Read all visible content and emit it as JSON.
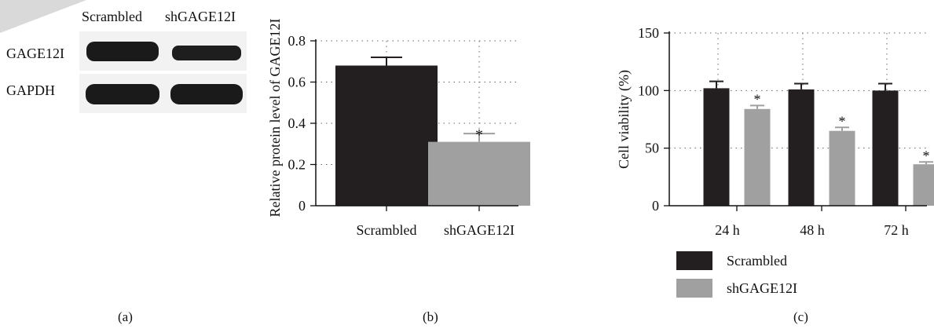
{
  "panel_a": {
    "lane_labels": [
      "Scrambled",
      "shGAGE12I"
    ],
    "row_labels": [
      "GAGE12I",
      "GAPDH"
    ],
    "tag": "(a)"
  },
  "panel_b": {
    "tag": "(b)"
  },
  "panel_c": {
    "tag": "(c)",
    "legend": [
      "Scrambled",
      "shGAGE12I"
    ]
  },
  "colors": {
    "scrambled": "#231f20",
    "shgage": "#a0a0a0",
    "blot_bg": "#f2f2f2",
    "band": "#1a1a1a"
  },
  "chart_data": [
    {
      "type": "bar",
      "categories": [
        "Scrambled",
        "shGAGE12I"
      ],
      "values": [
        0.68,
        0.31
      ],
      "errors": [
        0.04,
        0.04
      ],
      "significance": [
        "",
        "*"
      ],
      "ylabel": "Relative protein level of GAGE12I",
      "xlabel": "",
      "ylim": [
        0,
        0.8
      ],
      "yticks": [
        "0",
        "0.2",
        "0.4",
        "0.6",
        "0.8"
      ],
      "grid": "dotted"
    },
    {
      "type": "bar",
      "categories": [
        "24 h",
        "48 h",
        "72 h"
      ],
      "series": [
        {
          "name": "Scrambled",
          "values": [
            102,
            101,
            100
          ],
          "errors": [
            6,
            5,
            6
          ],
          "significance": [
            "",
            "",
            ""
          ]
        },
        {
          "name": "shGAGE12I",
          "values": [
            84,
            65,
            36
          ],
          "errors": [
            3,
            3,
            2
          ],
          "significance": [
            "*",
            "*",
            "*"
          ]
        }
      ],
      "ylabel": "Cell viability (%)",
      "xlabel": "",
      "ylim": [
        0,
        150
      ],
      "yticks": [
        "0",
        "50",
        "100",
        "150"
      ],
      "grid": "dotted",
      "legend_position": "bottom"
    }
  ]
}
